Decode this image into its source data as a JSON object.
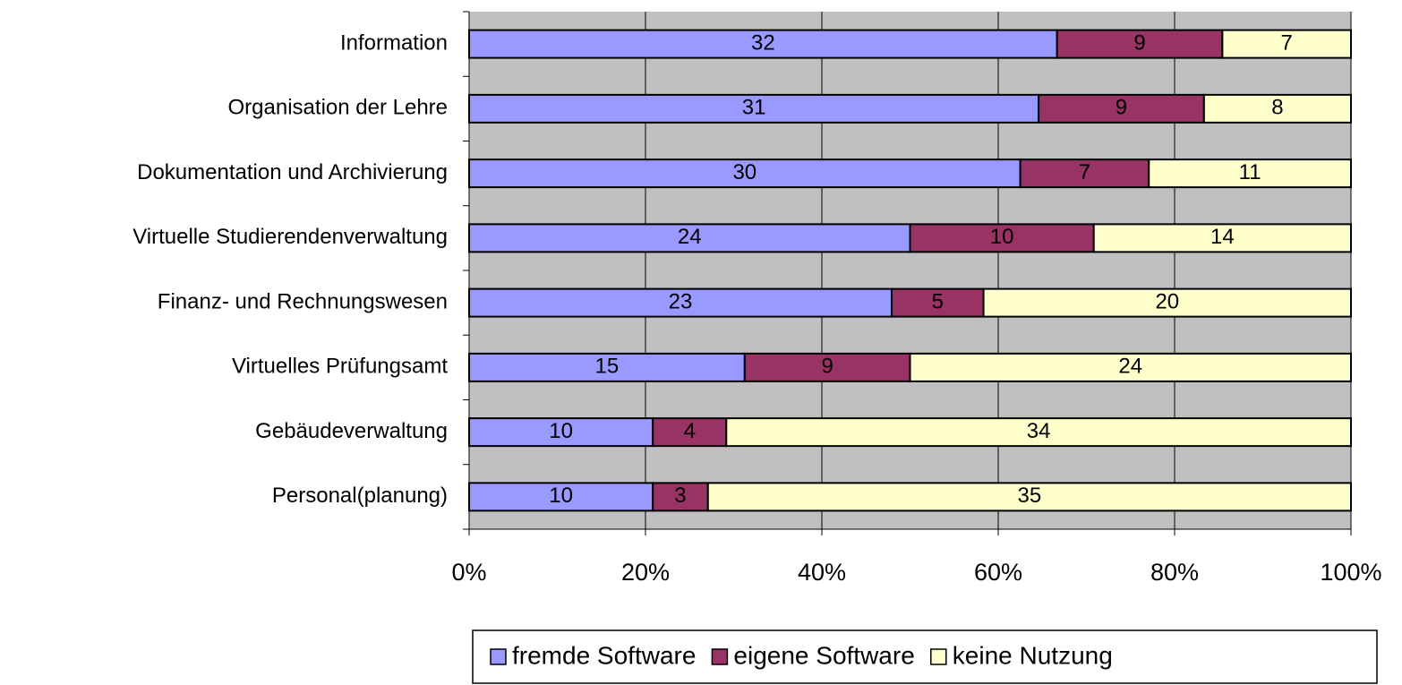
{
  "chart_data": {
    "type": "bar",
    "orientation": "horizontal",
    "stacked": "percent",
    "categories": [
      "Information",
      "Organisation der Lehre",
      "Dokumentation und Archivierung",
      "Virtuelle Studierendenverwaltung",
      "Finanz- und Rechnungswesen",
      "Virtuelles Prüfungsamt",
      "Gebäudeverwaltung",
      "Personal(planung)"
    ],
    "series": [
      {
        "name": "fremde Software",
        "color": "#9999ff",
        "values": [
          32,
          31,
          30,
          24,
          23,
          15,
          10,
          10
        ]
      },
      {
        "name": "eigene Software",
        "color": "#993366",
        "values": [
          9,
          9,
          7,
          10,
          5,
          9,
          4,
          3
        ]
      },
      {
        "name": "keine Nutzung",
        "color": "#ffffcc",
        "values": [
          7,
          8,
          11,
          14,
          20,
          24,
          34,
          35
        ]
      }
    ],
    "xlim": [
      0,
      100
    ],
    "xticks": [
      {
        "value": 0,
        "label": "0%"
      },
      {
        "value": 20,
        "label": "20%"
      },
      {
        "value": 40,
        "label": "40%"
      },
      {
        "value": 60,
        "label": "60%"
      },
      {
        "value": 80,
        "label": "80%"
      },
      {
        "value": 100,
        "label": "100%"
      }
    ],
    "grid": true,
    "legend": "bottom"
  }
}
